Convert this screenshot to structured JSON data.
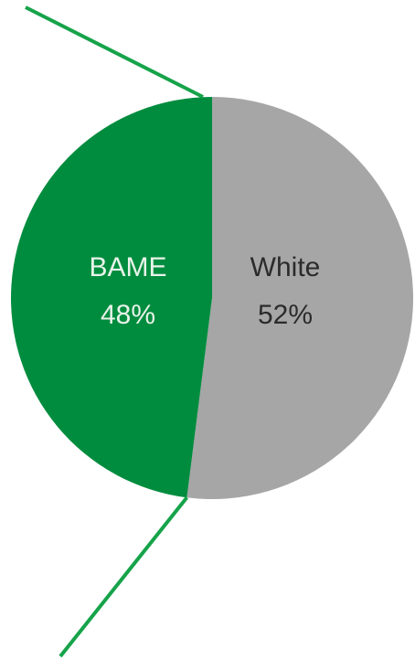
{
  "chart_data": {
    "type": "pie",
    "title": "",
    "slices": [
      {
        "label": "BAME",
        "value": 48,
        "value_label": "48%",
        "color": "#008c3e",
        "text_color": "#e8f3ea"
      },
      {
        "label": "White",
        "value": 52,
        "value_label": "52%",
        "color": "#a6a6a6",
        "text_color": "#2b2b2b"
      }
    ],
    "connector_color": "#16a34a",
    "legend": "none"
  }
}
